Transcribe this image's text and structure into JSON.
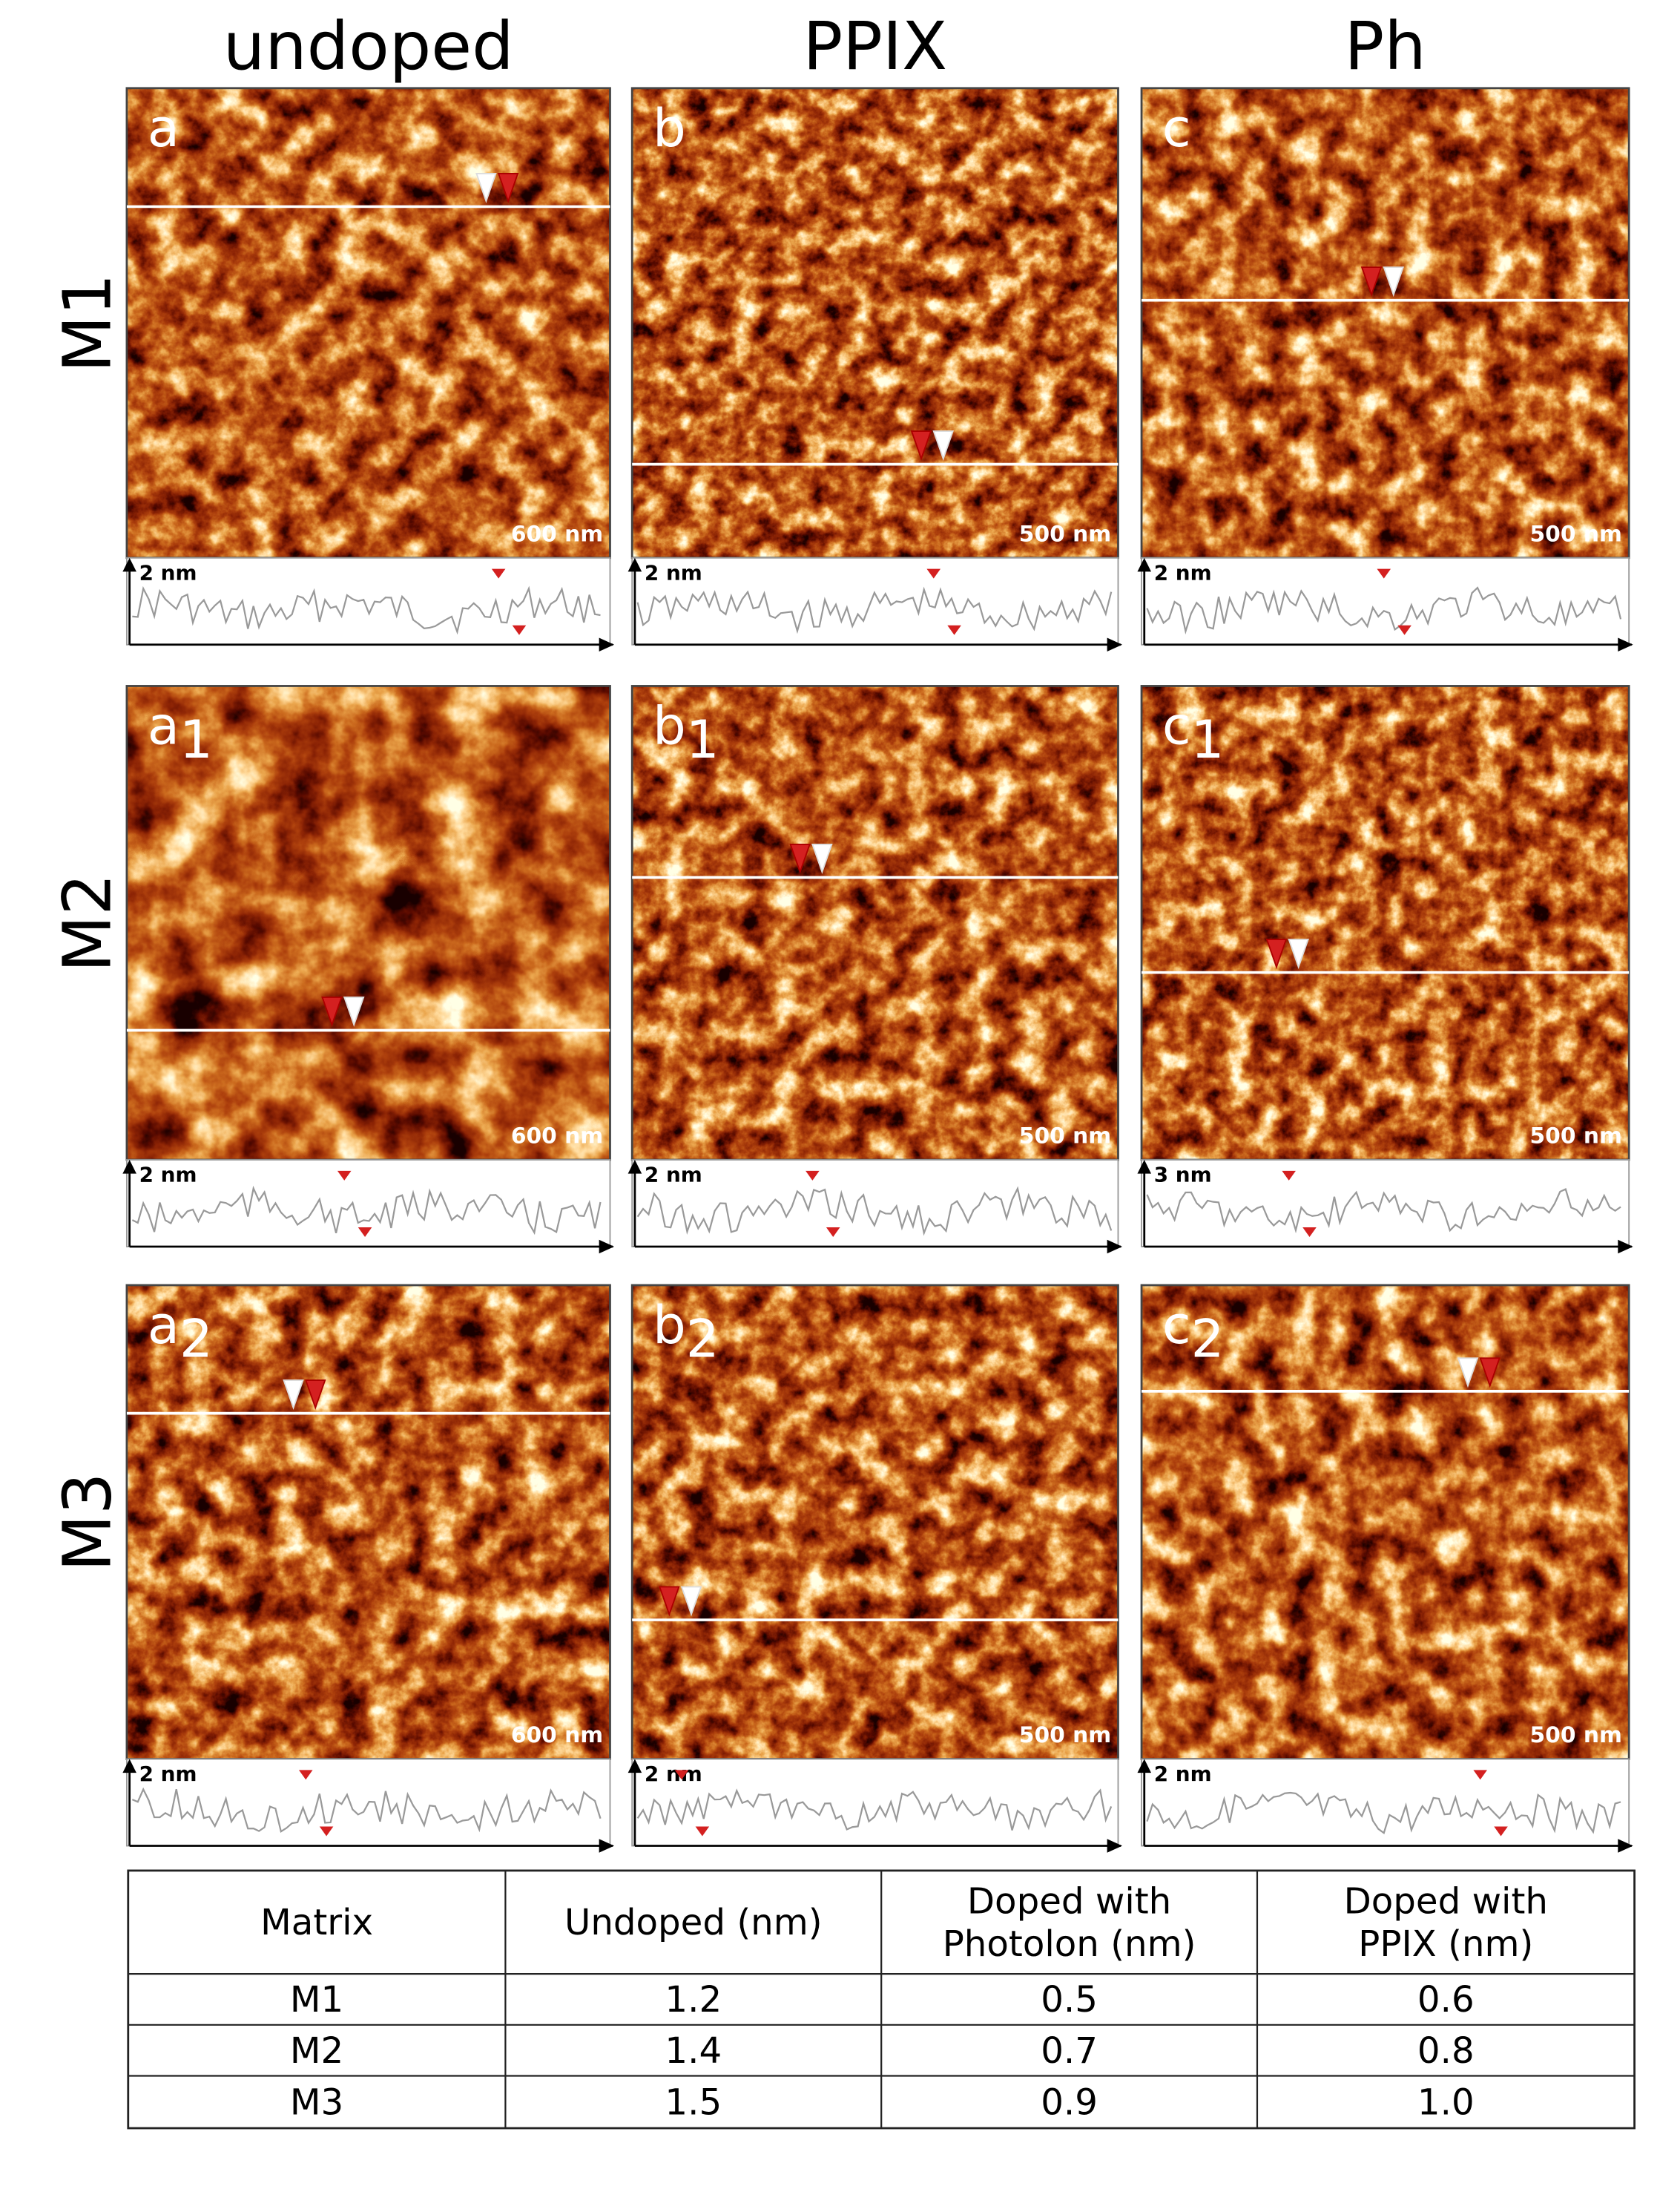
{
  "columns": [
    "undoped",
    "PPIX",
    "Ph"
  ],
  "rows": [
    "M1",
    "M2",
    "M3"
  ],
  "panels": [
    {
      "label": "a",
      "scale": "600 nm",
      "height": "2 nm"
    },
    {
      "label": "b",
      "scale": "500 nm",
      "height": "2 nm"
    },
    {
      "label": "c",
      "scale": "500 nm",
      "height": "2 nm"
    },
    {
      "label": "a",
      "subscript": "1",
      "scale": "600 nm",
      "height": "2 nm"
    },
    {
      "label": "b",
      "subscript": "1",
      "scale": "500 nm",
      "height": "2 nm"
    },
    {
      "label": "c",
      "subscript": "1",
      "scale": "500 nm",
      "height": "3 nm"
    },
    {
      "label": "a",
      "subscript": "2",
      "scale": "600 nm",
      "height": "2 nm"
    },
    {
      "label": "b",
      "subscript": "2",
      "scale": "500 nm",
      "height": "2 nm"
    },
    {
      "label": "c",
      "subscript": "2",
      "scale": "500 nm",
      "height": "2 nm"
    }
  ],
  "table": {
    "header": [
      [
        "Matrix"
      ],
      [
        "Undoped (nm)"
      ],
      [
        "Doped with",
        "Photolon (nm)"
      ],
      [
        "Doped with",
        "PPIX (nm)"
      ]
    ],
    "rows": [
      [
        "M1",
        "1.2",
        "0.5",
        "0.6"
      ],
      [
        "M2",
        "1.4",
        "0.7",
        "0.8"
      ],
      [
        "M3",
        "1.5",
        "0.9",
        "1.0"
      ]
    ]
  }
}
